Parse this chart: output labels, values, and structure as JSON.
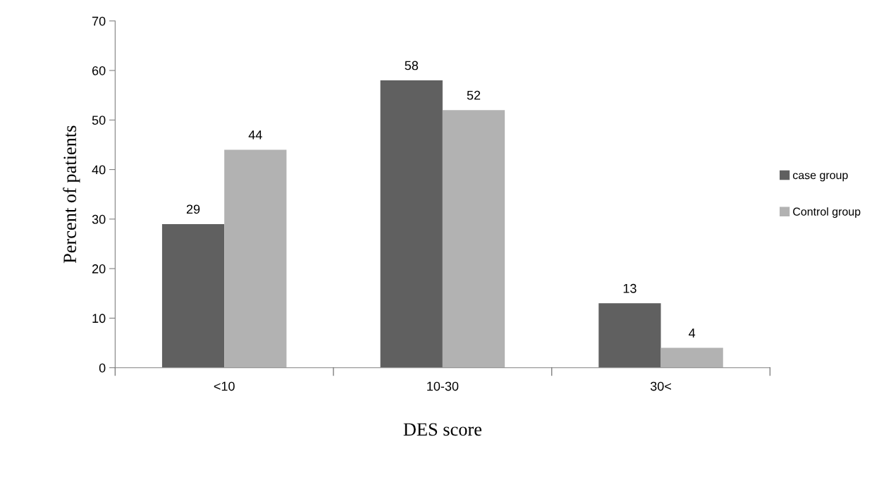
{
  "chart_data": {
    "type": "bar",
    "xlabel": "DES score",
    "ylabel": "Percent of patients",
    "categories": [
      "<10",
      "10-30",
      "30<"
    ],
    "series": [
      {
        "name": "case group",
        "color": "#606060",
        "values": [
          29,
          58,
          13
        ]
      },
      {
        "name": "Control group",
        "color": "#b2b2b2",
        "values": [
          44,
          52,
          4
        ]
      }
    ],
    "ylim": [
      0,
      70
    ],
    "yticks": [
      0,
      10,
      20,
      30,
      40,
      50,
      60,
      70
    ],
    "grid": false,
    "legend": "right",
    "data_labels": true
  }
}
